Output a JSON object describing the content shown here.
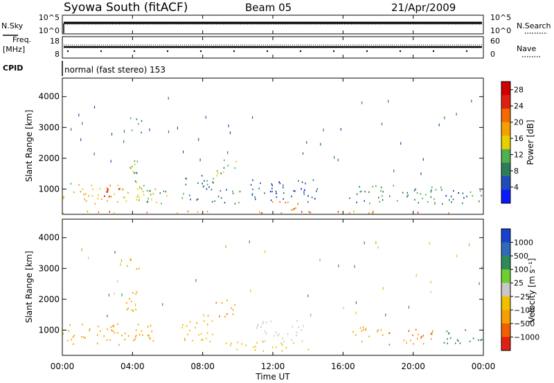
{
  "header": {
    "station": "Syowa South (fitACF)",
    "beam": "Beam 05",
    "date": "21/Apr/2009"
  },
  "nsky_panel": {
    "left_label": "N.Sky",
    "right_label": "N.Search",
    "left_ticks": [
      "10^5",
      "10^0"
    ],
    "right_ticks": [
      "10^5",
      "10^0"
    ]
  },
  "freq_panel": {
    "left_label_top": "Freq.",
    "left_label_bottom": "[MHz]",
    "right_label": "Nave",
    "left_ticks": [
      "18",
      "8"
    ],
    "right_ticks": [
      "60",
      "0"
    ]
  },
  "cpid": {
    "label": "CPID",
    "value": "normal (fast stereo) 153"
  },
  "colors": {
    "power": [
      "#0a1aff",
      "#1f4cb8",
      "#2e7d5a",
      "#4fb04f",
      "#e8d000",
      "#f5a000",
      "#f26a00",
      "#e02010",
      "#d00000"
    ],
    "velocity": [
      "#1a40d0",
      "#2f6ab8",
      "#2e8a5a",
      "#6ed030",
      "#c8c8c8",
      "#f0c000",
      "#f5a000",
      "#f06000",
      "#e02010"
    ]
  },
  "chart_data": [
    {
      "type": "heatmap",
      "name": "power",
      "ylabel": "Slant Range [km]",
      "xlabel": "Time UT",
      "x_tick_labels": [
        "00:00",
        "04:00",
        "08:00",
        "12:00",
        "16:00",
        "20:00",
        "00:00"
      ],
      "y_tick_labels": [
        "1000",
        "2000",
        "3000",
        "4000"
      ],
      "xlim": [
        0,
        24
      ],
      "ylim": [
        180,
        4600
      ],
      "colorbar_label": "Power [dB]",
      "colorbar_ticks": [
        "4",
        "8",
        "12",
        "16",
        "20",
        "24",
        "28"
      ],
      "colorbar_range": [
        0,
        30
      ],
      "regions": [
        {
          "t0": 0.0,
          "t1": 5.3,
          "r0": 500,
          "r1": 1200,
          "v": 16
        },
        {
          "t0": 2.2,
          "t1": 3.6,
          "r0": 700,
          "r1": 1100,
          "v": 25
        },
        {
          "t0": 3.6,
          "t1": 4.3,
          "r0": 1200,
          "r1": 2300,
          "v": 12
        },
        {
          "t0": 3.6,
          "t1": 4.5,
          "r0": 2800,
          "r1": 3300,
          "v": 10
        },
        {
          "t0": 4.5,
          "t1": 6.0,
          "r0": 500,
          "r1": 1000,
          "v": 11
        },
        {
          "t0": 6.8,
          "t1": 8.6,
          "r0": 600,
          "r1": 1500,
          "v": 8
        },
        {
          "t0": 8.7,
          "t1": 9.9,
          "r0": 1400,
          "r1": 2000,
          "v": 12
        },
        {
          "t0": 8.5,
          "t1": 10.2,
          "r0": 500,
          "r1": 1000,
          "v": 10
        },
        {
          "t0": 10.7,
          "t1": 14.6,
          "r0": 550,
          "r1": 1300,
          "v": 6
        },
        {
          "t0": 11.5,
          "t1": 13.6,
          "r0": 300,
          "r1": 600,
          "v": 20
        },
        {
          "t0": 16.3,
          "t1": 21.6,
          "r0": 500,
          "r1": 1100,
          "v": 9
        },
        {
          "t0": 21.6,
          "t1": 24.0,
          "r0": 500,
          "r1": 1000,
          "v": 7
        },
        {
          "t0": 0.0,
          "t1": 24.0,
          "r0": 190,
          "r1": 260,
          "v": 22
        }
      ]
    },
    {
      "type": "heatmap",
      "name": "velocity",
      "ylabel": "Slant Range [km]",
      "xlabel": "Time UT",
      "x_tick_labels": [
        "00:00",
        "04:00",
        "08:00",
        "12:00",
        "16:00",
        "20:00",
        "00:00"
      ],
      "y_tick_labels": [
        "1000",
        "2000",
        "3000",
        "4000"
      ],
      "xlim": [
        0,
        24
      ],
      "ylim": [
        180,
        4600
      ],
      "colorbar_label": "Velocity [m s⁻¹]",
      "colorbar_ticks": [
        "1000",
        "500",
        "100",
        "25",
        "−25",
        "−100",
        "−500",
        "−1000"
      ],
      "regions": [
        {
          "t0": 0.0,
          "t1": 5.3,
          "r0": 500,
          "r1": 1200,
          "v": -300
        },
        {
          "t0": 3.6,
          "t1": 4.3,
          "r0": 1200,
          "r1": 2300,
          "v": -150
        },
        {
          "t0": 3.6,
          "t1": 4.5,
          "r0": 2800,
          "r1": 3300,
          "v": -200
        },
        {
          "t0": 6.8,
          "t1": 8.6,
          "r0": 600,
          "r1": 1500,
          "v": -80
        },
        {
          "t0": 8.7,
          "t1": 9.9,
          "r0": 1400,
          "r1": 2000,
          "v": -400
        },
        {
          "t0": 11.0,
          "t1": 13.8,
          "r0": 600,
          "r1": 1300,
          "v": 0
        },
        {
          "t0": 9.0,
          "t1": 14.0,
          "r0": 300,
          "r1": 600,
          "v": -60
        },
        {
          "t0": 16.5,
          "t1": 18.6,
          "r0": 600,
          "r1": 1100,
          "v": -300
        },
        {
          "t0": 18.6,
          "t1": 21.6,
          "r0": 500,
          "r1": 1000,
          "v": -450
        },
        {
          "t0": 21.6,
          "t1": 24.0,
          "r0": 500,
          "r1": 1000,
          "v": 200
        }
      ]
    }
  ]
}
